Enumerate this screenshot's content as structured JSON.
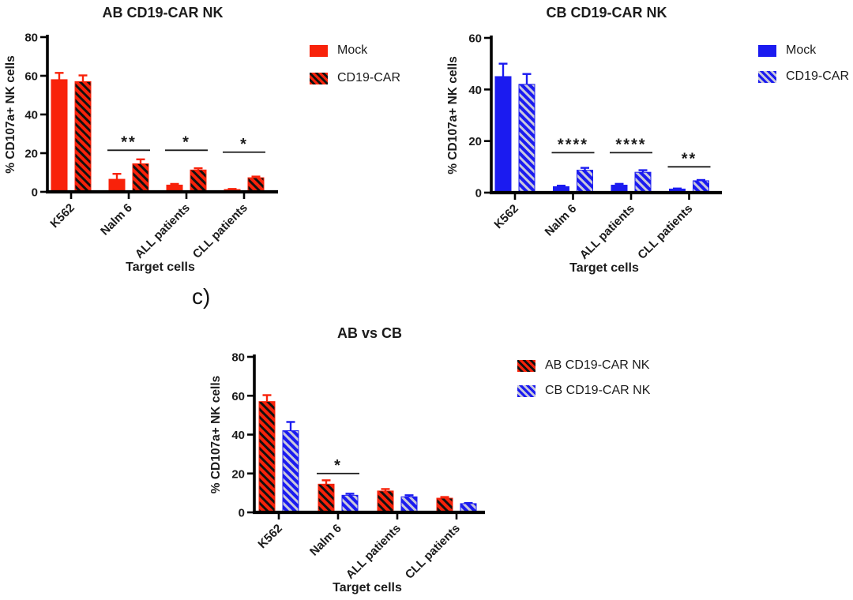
{
  "figure_label": "c)",
  "colors": {
    "red": "#F8220A",
    "blue": "#1B1BF0",
    "red_stripe": "#111111",
    "blue_stripe": "#C9C9DB",
    "axis": "#000000",
    "text": "#1b1b1b"
  },
  "chart_data": [
    {
      "type": "bar",
      "title": "AB CD19-CAR NK",
      "ylabel": "% CD107a+ NK cells",
      "xlabel": "Target cells",
      "ylim": [
        0,
        80
      ],
      "yticks": [
        0,
        20,
        40,
        60,
        80
      ],
      "grid": false,
      "legend_position": "right",
      "categories": [
        "K562",
        "Nalm 6",
        "ALL patients",
        "CLL patients"
      ],
      "series": [
        {
          "name": "Mock",
          "color": "#F8220A",
          "hatched": false,
          "values": [
            58,
            6.5,
            3.5,
            1.2
          ],
          "errors": [
            3.5,
            2.8,
            0.6,
            0.3
          ]
        },
        {
          "name": "CD19-CAR",
          "color": "#F8220A",
          "hatched": true,
          "stripe_color": "#111111",
          "values": [
            57,
            14.5,
            11.3,
            7.3
          ],
          "errors": [
            3.2,
            2.3,
            0.9,
            0.6
          ]
        }
      ],
      "significance": [
        {
          "category": "Nalm 6",
          "category_index": 1,
          "label": "**",
          "y": 21.5
        },
        {
          "category": "ALL patients",
          "category_index": 2,
          "label": "*",
          "y": 21.5
        },
        {
          "category": "CLL patients",
          "category_index": 3,
          "label": "*",
          "y": 20.5
        }
      ],
      "legend": [
        {
          "label": "Mock",
          "color": "#F8220A",
          "hatched": false
        },
        {
          "label": "CD19-CAR",
          "color": "#F8220A",
          "hatched": true,
          "stripe_color": "#111111"
        }
      ]
    },
    {
      "type": "bar",
      "title": "CB CD19-CAR NK",
      "ylabel": "% CD107a+ NK cells",
      "xlabel": "Target cells",
      "ylim": [
        0,
        60
      ],
      "yticks": [
        0,
        20,
        40,
        60
      ],
      "grid": false,
      "legend_position": "right",
      "categories": [
        "K562",
        "Nalm 6",
        "ALL patients",
        "CLL patients"
      ],
      "series": [
        {
          "name": "Mock",
          "color": "#1B1BF0",
          "hatched": false,
          "values": [
            45,
            2.3,
            2.9,
            1.4
          ],
          "errors": [
            5,
            0.4,
            0.5,
            0.2
          ]
        },
        {
          "name": "CD19-CAR",
          "color": "#1B1BF0",
          "hatched": true,
          "stripe_color": "#C9C9DB",
          "values": [
            42,
            8.7,
            7.9,
            4.6
          ],
          "errors": [
            4,
            0.9,
            0.8,
            0.3
          ]
        }
      ],
      "significance": [
        {
          "category": "Nalm 6",
          "category_index": 1,
          "label": "****",
          "y": 15.5
        },
        {
          "category": "ALL patients",
          "category_index": 2,
          "label": "****",
          "y": 15.5
        },
        {
          "category": "CLL patients",
          "category_index": 3,
          "label": "**",
          "y": 10
        }
      ],
      "legend": [
        {
          "label": "Mock",
          "color": "#1B1BF0",
          "hatched": false
        },
        {
          "label": "CD19-CAR",
          "color": "#1B1BF0",
          "hatched": true,
          "stripe_color": "#C9C9DB"
        }
      ]
    },
    {
      "type": "bar",
      "title": "AB vs CB",
      "ylabel": "% CD107a+ NK cells",
      "xlabel": "Target cells",
      "ylim": [
        0,
        80
      ],
      "yticks": [
        0,
        20,
        40,
        60,
        80
      ],
      "grid": false,
      "legend_position": "right",
      "categories": [
        "K562",
        "Nalm 6",
        "ALL patients",
        "CLL patients"
      ],
      "series": [
        {
          "name": "AB CD19-CAR NK",
          "color": "#F8220A",
          "hatched": true,
          "stripe_color": "#111111",
          "values": [
            57,
            14.5,
            11,
            7.3
          ],
          "errors": [
            3.3,
            2,
            1,
            0.6
          ]
        },
        {
          "name": "CB CD19-CAR NK",
          "color": "#1B1BF0",
          "hatched": true,
          "stripe_color": "#C9C9DB",
          "values": [
            42,
            8.8,
            8,
            4.5
          ],
          "errors": [
            4.5,
            0.8,
            0.8,
            0.3
          ]
        }
      ],
      "significance": [
        {
          "category": "Nalm 6",
          "category_index": 1,
          "label": "*",
          "y": 20
        }
      ],
      "legend": [
        {
          "label": "AB CD19-CAR NK",
          "color": "#F8220A",
          "hatched": true,
          "stripe_color": "#111111"
        },
        {
          "label": "CB CD19-CAR NK",
          "color": "#1B1BF0",
          "hatched": true,
          "stripe_color": "#C9C9DB"
        }
      ]
    }
  ]
}
